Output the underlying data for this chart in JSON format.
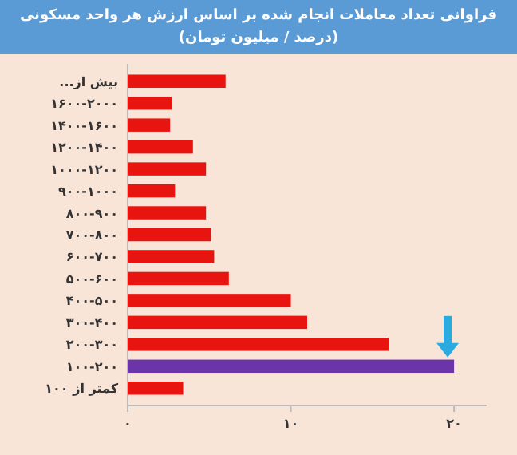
{
  "chart_data": {
    "type": "bar",
    "orientation": "horizontal",
    "title": "فراوانی تعداد معاملات انجام شده بر اساس ارزش هر واحد مسکونی (درصد / میلیون تومان)",
    "categories": [
      "بیش از...",
      "۱۶۰۰-۲۰۰۰",
      "۱۴۰۰-۱۶۰۰",
      "۱۲۰۰-۱۴۰۰",
      "۱۰۰۰-۱۲۰۰",
      "۹۰۰-۱۰۰۰",
      "۸۰۰-۹۰۰",
      "۷۰۰-۸۰۰",
      "۶۰۰-۷۰۰",
      "۵۰۰-۶۰۰",
      "۴۰۰-۵۰۰",
      "۳۰۰-۴۰۰",
      "۲۰۰-۳۰۰",
      "۱۰۰-۲۰۰",
      "کمتر از ۱۰۰"
    ],
    "values": [
      6,
      2.7,
      2.6,
      4,
      4.8,
      2.9,
      4.8,
      5.1,
      5.3,
      6.2,
      10,
      11,
      16,
      20,
      3.4
    ],
    "colors": [
      "#e8140f",
      "#e8140f",
      "#e8140f",
      "#e8140f",
      "#e8140f",
      "#e8140f",
      "#e8140f",
      "#e8140f",
      "#e8140f",
      "#e8140f",
      "#e8140f",
      "#e8140f",
      "#e8140f",
      "#6b34a8",
      "#e8140f"
    ],
    "xlim": [
      0,
      22
    ],
    "xticks": [
      {
        "value": 0,
        "label": "۰"
      },
      {
        "value": 10,
        "label": "۱۰"
      },
      {
        "value": 20,
        "label": "۲۰"
      }
    ]
  }
}
